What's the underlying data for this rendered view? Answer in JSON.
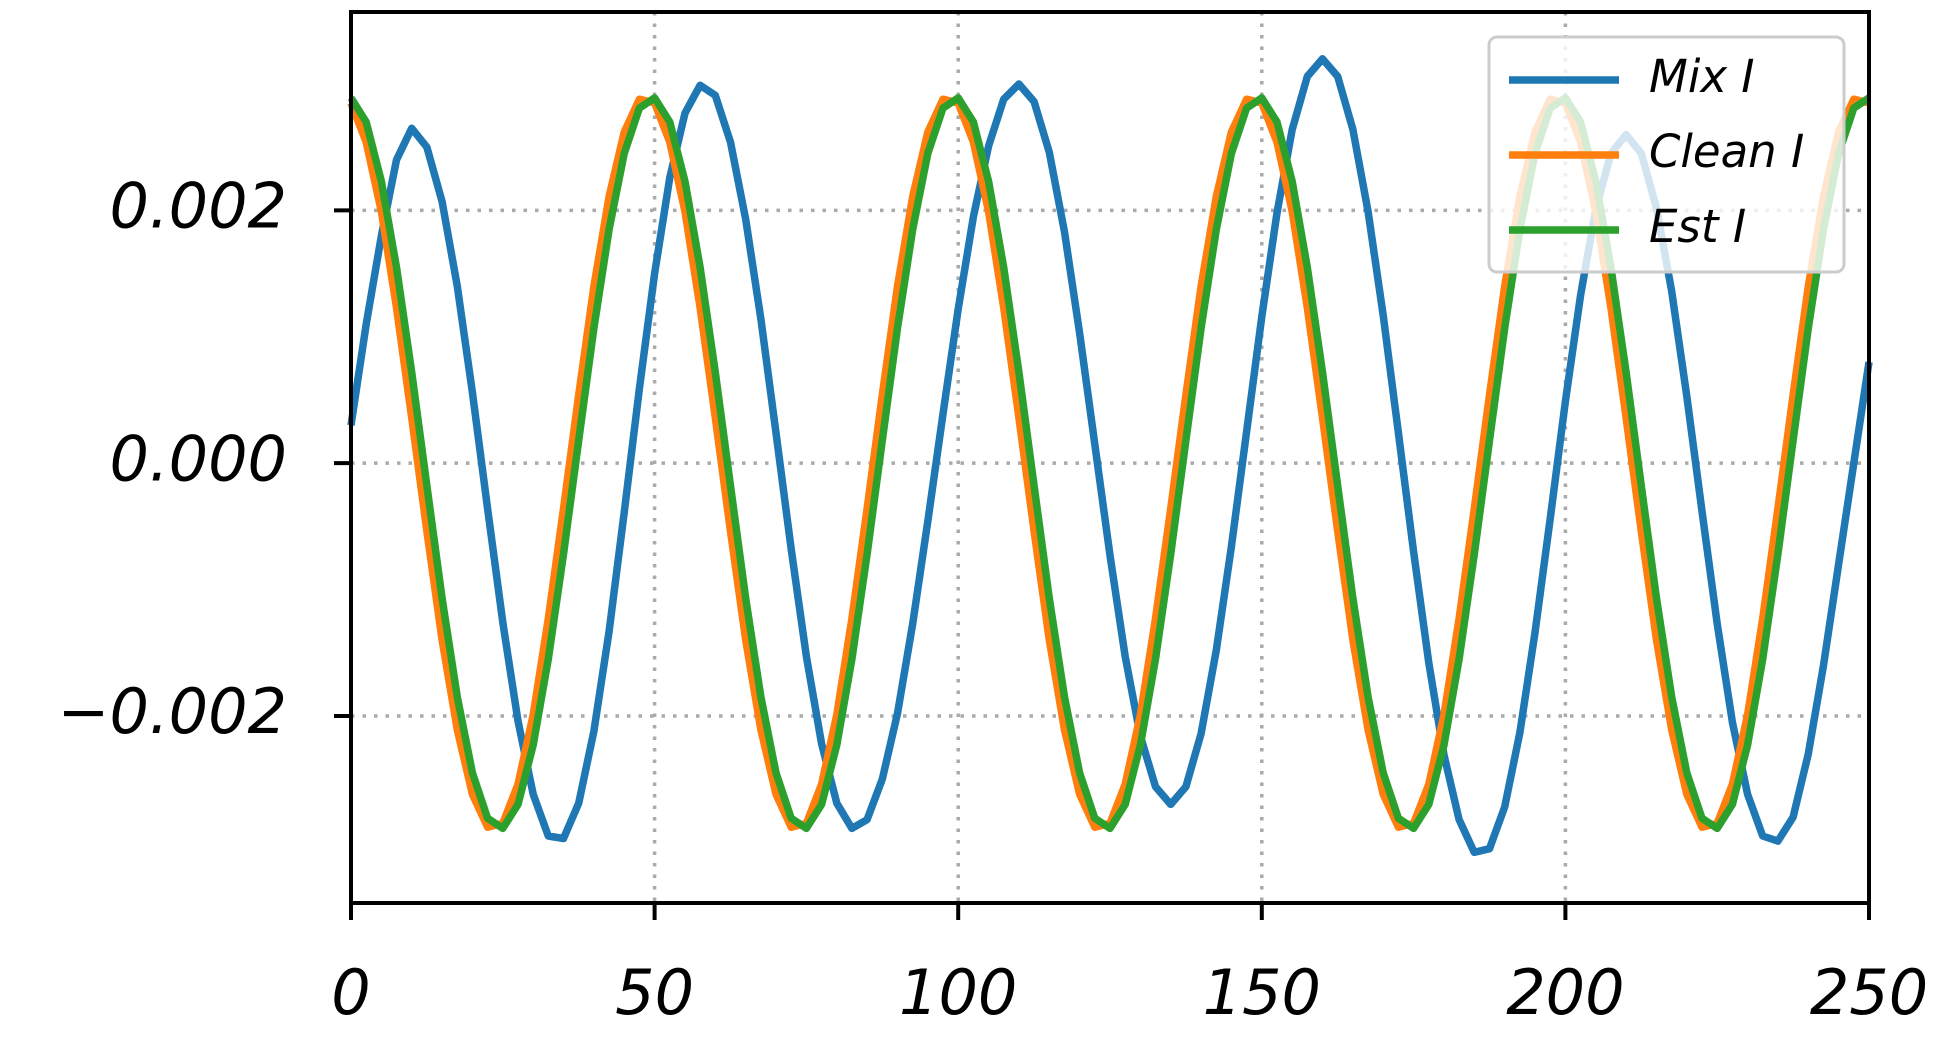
{
  "chart_data": {
    "type": "line",
    "x": [
      0,
      2.5,
      5,
      7.5,
      10,
      12.5,
      15,
      17.5,
      20,
      22.5,
      25,
      27.5,
      30,
      32.5,
      35,
      37.5,
      40,
      42.5,
      45,
      47.5,
      50,
      52.5,
      55,
      57.5,
      60,
      62.5,
      65,
      67.5,
      70,
      72.5,
      75,
      77.5,
      80,
      82.5,
      85,
      87.5,
      90,
      92.5,
      95,
      97.5,
      100,
      102.5,
      105,
      107.5,
      110,
      112.5,
      115,
      117.5,
      120,
      122.5,
      125,
      127.5,
      130,
      132.5,
      135,
      137.5,
      140,
      142.5,
      145,
      147.5,
      150,
      152.5,
      155,
      157.5,
      160,
      162.5,
      165,
      167.5,
      170,
      172.5,
      175,
      177.5,
      180,
      182.5,
      185,
      187.5,
      190,
      192.5,
      195,
      197.5,
      200,
      202.5,
      205,
      207.5,
      210,
      212.5,
      215,
      217.5,
      220,
      222.5,
      225,
      227.5,
      230,
      232.5,
      235,
      237.5,
      240,
      242.5,
      245,
      247.5,
      250
    ],
    "series": [
      {
        "name": "Mix I",
        "color": "#1f77b4",
        "values": [
          0.0003,
          0.0011,
          0.0018,
          0.0024,
          0.00265,
          0.0025,
          0.00207,
          0.0014,
          0.00056,
          -0.00036,
          -0.00126,
          -0.00204,
          -0.00262,
          -0.00295,
          -0.00297,
          -0.00269,
          -0.00212,
          -0.00133,
          -0.00039,
          0.00059,
          0.0015,
          0.00226,
          0.00277,
          0.00299,
          0.00291,
          0.00254,
          0.00193,
          0.00114,
          0.00024,
          -0.00068,
          -0.00153,
          -0.00222,
          -0.00269,
          -0.00289,
          -0.00282,
          -0.0025,
          -0.00198,
          -0.00127,
          -0.00046,
          0.00039,
          0.00122,
          0.00195,
          0.00251,
          0.00288,
          0.003,
          0.00286,
          0.00246,
          0.00183,
          0.00103,
          0.00015,
          -0.00073,
          -0.00153,
          -0.00216,
          -0.00256,
          -0.0027,
          -0.00256,
          -0.00214,
          -0.00148,
          -0.00066,
          0.00025,
          0.00116,
          0.00198,
          0.00264,
          0.00306,
          0.0032,
          0.00306,
          0.00264,
          0.00199,
          0.00117,
          0.00024,
          -0.0007,
          -0.00158,
          -0.00231,
          -0.00282,
          -0.00308,
          -0.00305,
          -0.00272,
          -0.00213,
          -0.00134,
          -0.00044,
          0.00049,
          0.00133,
          0.00201,
          0.00245,
          0.0026,
          0.00245,
          0.00202,
          0.00136,
          0.00053,
          -0.00038,
          -0.00127,
          -0.00205,
          -0.00262,
          -0.00295,
          -0.00299,
          -0.0028,
          -0.0023,
          -0.0016,
          -0.0008,
          0.0,
          0.0008
        ]
      },
      {
        "name": "Clean I",
        "color": "#ff7f0e",
        "values": [
          0.00285,
          0.00254,
          0.00199,
          0.00123,
          0.00036,
          -0.00054,
          -0.0014,
          -0.00211,
          -0.00262,
          -0.00288,
          -0.00285,
          -0.00254,
          -0.00199,
          -0.00123,
          -0.00036,
          0.00054,
          0.0014,
          0.00211,
          0.00262,
          0.00288,
          0.00285,
          0.00254,
          0.00199,
          0.00123,
          0.00036,
          -0.00054,
          -0.0014,
          -0.00211,
          -0.00262,
          -0.00288,
          -0.00285,
          -0.00254,
          -0.00199,
          -0.00123,
          -0.00036,
          0.00054,
          0.0014,
          0.00211,
          0.00262,
          0.00288,
          0.00285,
          0.00254,
          0.00199,
          0.00123,
          0.00036,
          -0.00054,
          -0.0014,
          -0.00211,
          -0.00262,
          -0.00288,
          -0.00285,
          -0.00254,
          -0.00199,
          -0.00123,
          -0.00036,
          0.00054,
          0.0014,
          0.00211,
          0.00262,
          0.00288,
          0.00285,
          0.00254,
          0.00199,
          0.00123,
          0.00036,
          -0.00054,
          -0.0014,
          -0.00211,
          -0.00262,
          -0.00288,
          -0.00285,
          -0.00254,
          -0.00199,
          -0.00123,
          -0.00036,
          0.00054,
          0.0014,
          0.00211,
          0.00262,
          0.00288,
          0.00285,
          0.00254,
          0.00199,
          0.00123,
          0.00036,
          -0.00054,
          -0.0014,
          -0.00211,
          -0.00262,
          -0.00288,
          -0.00285,
          -0.00254,
          -0.00199,
          -0.00123,
          -0.00036,
          0.00054,
          0.0014,
          0.00211,
          0.00262,
          0.00288,
          0.00285
        ]
      },
      {
        "name": "Est I",
        "color": "#2ca02c",
        "values": [
          0.00289,
          0.0027,
          0.00223,
          0.00155,
          0.00072,
          -0.00018,
          -0.00107,
          -0.00185,
          -0.00245,
          -0.00281,
          -0.00289,
          -0.0027,
          -0.00223,
          -0.00155,
          -0.00072,
          0.00018,
          0.00107,
          0.00185,
          0.00245,
          0.00281,
          0.00289,
          0.0027,
          0.00223,
          0.00155,
          0.00072,
          -0.00018,
          -0.00107,
          -0.00185,
          -0.00245,
          -0.00281,
          -0.00289,
          -0.0027,
          -0.00223,
          -0.00155,
          -0.00072,
          0.00018,
          0.00107,
          0.00185,
          0.00245,
          0.00281,
          0.00289,
          0.0027,
          0.00223,
          0.00155,
          0.00072,
          -0.00018,
          -0.00107,
          -0.00185,
          -0.00245,
          -0.00281,
          -0.00289,
          -0.0027,
          -0.00223,
          -0.00155,
          -0.00072,
          0.00018,
          0.00107,
          0.00185,
          0.00245,
          0.00281,
          0.00289,
          0.0027,
          0.00223,
          0.00155,
          0.00072,
          -0.00018,
          -0.00107,
          -0.00185,
          -0.00245,
          -0.00281,
          -0.00289,
          -0.0027,
          -0.00223,
          -0.00155,
          -0.00072,
          0.00018,
          0.00107,
          0.00185,
          0.00245,
          0.00281,
          0.00289,
          0.0027,
          0.00223,
          0.00155,
          0.00072,
          -0.00018,
          -0.00107,
          -0.00185,
          -0.00245,
          -0.00281,
          -0.00289,
          -0.0027,
          -0.00223,
          -0.00155,
          -0.00072,
          0.00018,
          0.00107,
          0.00185,
          0.00245,
          0.00281,
          0.00289
        ]
      }
    ],
    "xlim": [
      0,
      250
    ],
    "xticks": [
      0,
      50,
      100,
      150,
      200,
      250
    ],
    "ylim": [
      -0.00348,
      0.00357
    ],
    "yticks": [
      {
        "value": -0.002,
        "label": "−0.002"
      },
      {
        "value": 0,
        "label": "0.000"
      },
      {
        "value": 0.002,
        "label": "0.002"
      }
    ],
    "grid": true,
    "legend": "upper right"
  }
}
